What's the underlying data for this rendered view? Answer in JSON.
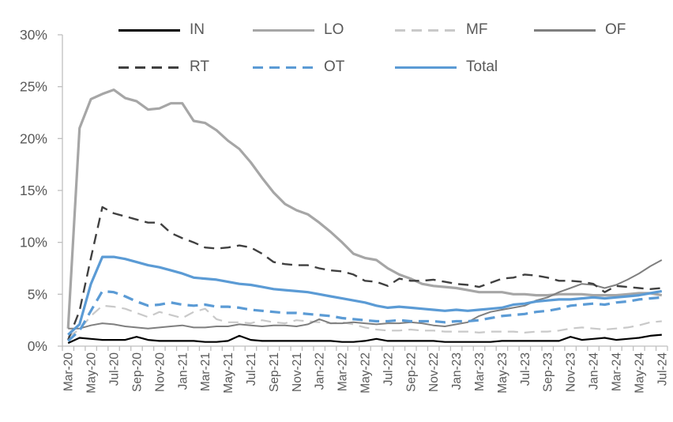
{
  "chart_data": {
    "type": "line",
    "title": "",
    "xlabel": "",
    "ylabel": "",
    "ylim": [
      0,
      30
    ],
    "ytick_labels": [
      "0%",
      "5%",
      "10%",
      "15%",
      "20%",
      "25%",
      "30%"
    ],
    "ytick_values": [
      0,
      5,
      10,
      15,
      20,
      25,
      30
    ],
    "x_label_every": 2,
    "grid": "off",
    "legend_position": "top",
    "axis_color": "#BFBFBF",
    "label_color": "#595959",
    "x": [
      "Mar-20",
      "Apr-20",
      "May-20",
      "Jun-20",
      "Jul-20",
      "Aug-20",
      "Sep-20",
      "Oct-20",
      "Nov-20",
      "Dec-20",
      "Jan-21",
      "Feb-21",
      "Mar-21",
      "Apr-21",
      "May-21",
      "Jun-21",
      "Jul-21",
      "Aug-21",
      "Sep-21",
      "Oct-21",
      "Nov-21",
      "Dec-21",
      "Jan-22",
      "Feb-22",
      "Mar-22",
      "Apr-22",
      "May-22",
      "Jun-22",
      "Jul-22",
      "Aug-22",
      "Sep-22",
      "Oct-22",
      "Nov-22",
      "Dec-22",
      "Jan-23",
      "Feb-23",
      "Mar-23",
      "Apr-23",
      "May-23",
      "Jun-23",
      "Jul-23",
      "Aug-23",
      "Sep-23",
      "Oct-23",
      "Nov-23",
      "Dec-23",
      "Jan-24",
      "Feb-24",
      "Mar-24",
      "Apr-24",
      "May-24",
      "Jun-24",
      "Jul-24"
    ],
    "series": [
      {
        "name": "IN",
        "color": "#000000",
        "style": "solid",
        "width": 2.2,
        "values": [
          0.3,
          0.8,
          0.7,
          0.6,
          0.6,
          0.6,
          0.9,
          0.6,
          0.5,
          0.5,
          0.5,
          0.5,
          0.4,
          0.4,
          0.5,
          1.0,
          0.6,
          0.5,
          0.5,
          0.5,
          0.5,
          0.5,
          0.5,
          0.5,
          0.4,
          0.4,
          0.5,
          0.7,
          0.5,
          0.5,
          0.5,
          0.5,
          0.5,
          0.4,
          0.4,
          0.4,
          0.4,
          0.4,
          0.5,
          0.5,
          0.5,
          0.5,
          0.5,
          0.5,
          0.9,
          0.6,
          0.7,
          0.8,
          0.6,
          0.7,
          0.8,
          1.0,
          1.1
        ]
      },
      {
        "name": "LO",
        "color": "#A6A6A6",
        "style": "solid",
        "width": 3.2,
        "values": [
          1.7,
          21.0,
          23.8,
          24.3,
          24.7,
          23.9,
          23.6,
          22.8,
          22.9,
          23.4,
          23.4,
          21.7,
          21.5,
          20.8,
          19.8,
          19.0,
          17.7,
          16.2,
          14.8,
          13.7,
          13.1,
          12.7,
          11.9,
          11.0,
          10.0,
          8.9,
          8.5,
          8.3,
          7.5,
          6.9,
          6.5,
          6.0,
          5.8,
          5.7,
          5.6,
          5.4,
          5.2,
          5.2,
          5.2,
          5.0,
          5.0,
          4.9,
          4.9,
          5.0,
          5.0,
          5.0,
          4.9,
          4.9,
          4.9,
          5.0,
          5.1,
          5.1,
          4.9
        ]
      },
      {
        "name": "MF",
        "color": "#C9C9C9",
        "style": "dashed",
        "width": 2.2,
        "values": [
          0.9,
          1.6,
          2.9,
          3.9,
          3.8,
          3.6,
          3.2,
          2.8,
          3.3,
          3.0,
          2.7,
          3.3,
          3.6,
          2.6,
          2.3,
          2.3,
          2.2,
          2.5,
          2.3,
          2.2,
          2.5,
          2.4,
          2.3,
          2.2,
          2.3,
          2.1,
          1.8,
          1.6,
          1.5,
          1.5,
          1.6,
          1.5,
          1.5,
          1.4,
          1.4,
          1.4,
          1.3,
          1.4,
          1.4,
          1.4,
          1.3,
          1.4,
          1.4,
          1.5,
          1.7,
          1.8,
          1.7,
          1.6,
          1.7,
          1.8,
          2.0,
          2.3,
          2.4
        ]
      },
      {
        "name": "OF",
        "color": "#7F7F7F",
        "style": "solid",
        "width": 2.0,
        "values": [
          1.7,
          1.7,
          2.0,
          2.2,
          2.1,
          1.9,
          1.8,
          1.7,
          1.8,
          1.9,
          2.0,
          1.8,
          1.8,
          1.9,
          1.9,
          2.1,
          2.0,
          1.9,
          2.0,
          2.0,
          1.9,
          2.1,
          2.6,
          2.2,
          2.2,
          2.3,
          2.2,
          2.1,
          2.2,
          2.2,
          2.3,
          2.2,
          2.0,
          1.9,
          2.1,
          2.3,
          2.9,
          3.3,
          3.5,
          3.7,
          3.9,
          4.4,
          4.7,
          5.2,
          5.6,
          6.0,
          5.9,
          5.6,
          5.9,
          6.4,
          7.0,
          7.7,
          8.3
        ]
      },
      {
        "name": "RT",
        "color": "#404040",
        "style": "dashed",
        "width": 2.4,
        "values": [
          0.6,
          3.4,
          8.5,
          13.4,
          12.8,
          12.5,
          12.2,
          11.9,
          11.9,
          10.9,
          10.4,
          10.0,
          9.5,
          9.4,
          9.5,
          9.7,
          9.5,
          8.9,
          8.1,
          7.9,
          7.8,
          7.8,
          7.5,
          7.3,
          7.2,
          6.9,
          6.3,
          6.2,
          5.8,
          6.5,
          6.3,
          6.3,
          6.4,
          6.2,
          6.0,
          5.9,
          5.7,
          6.1,
          6.5,
          6.6,
          6.9,
          6.8,
          6.6,
          6.3,
          6.3,
          6.2,
          6.0,
          5.2,
          5.8,
          5.7,
          5.6,
          5.5,
          5.6
        ]
      },
      {
        "name": "OT",
        "color": "#5B9BD5",
        "style": "dashed",
        "width": 3.2,
        "values": [
          0.5,
          1.5,
          3.4,
          5.3,
          5.2,
          4.8,
          4.3,
          3.9,
          4.0,
          4.2,
          4.0,
          3.9,
          4.0,
          3.8,
          3.8,
          3.7,
          3.5,
          3.4,
          3.3,
          3.2,
          3.2,
          3.1,
          3.0,
          2.9,
          2.7,
          2.6,
          2.5,
          2.4,
          2.4,
          2.5,
          2.4,
          2.4,
          2.4,
          2.3,
          2.4,
          2.4,
          2.5,
          2.7,
          2.9,
          3.0,
          3.1,
          3.3,
          3.4,
          3.6,
          3.9,
          4.0,
          4.1,
          4.0,
          4.2,
          4.3,
          4.5,
          4.6,
          4.7
        ]
      },
      {
        "name": "Total",
        "color": "#5B9BD5",
        "style": "solid",
        "width": 3.2,
        "values": [
          1.1,
          2.1,
          6.0,
          8.6,
          8.6,
          8.4,
          8.1,
          7.8,
          7.6,
          7.3,
          7.0,
          6.6,
          6.5,
          6.4,
          6.2,
          6.0,
          5.9,
          5.7,
          5.5,
          5.4,
          5.3,
          5.2,
          5.0,
          4.8,
          4.6,
          4.4,
          4.2,
          3.9,
          3.7,
          3.8,
          3.7,
          3.6,
          3.5,
          3.4,
          3.5,
          3.4,
          3.5,
          3.6,
          3.7,
          4.0,
          4.1,
          4.3,
          4.4,
          4.5,
          4.5,
          4.6,
          4.7,
          4.6,
          4.7,
          4.8,
          4.9,
          5.1,
          5.3
        ]
      }
    ],
    "legend_rows": [
      [
        "IN",
        "LO",
        "MF",
        "OF"
      ],
      [
        "RT",
        "OT",
        "Total"
      ]
    ]
  }
}
